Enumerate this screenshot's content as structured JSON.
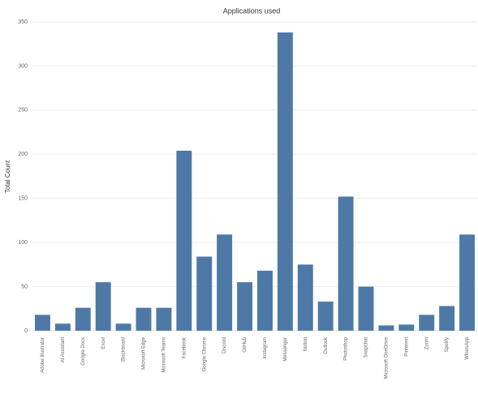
{
  "chart_data": {
    "type": "bar",
    "title": "Applications used",
    "y_label": "Total Count",
    "categories": [
      "Adobe Illustrator",
      "AI Assistant",
      "Google Docs",
      "Excel",
      "Blackboard",
      "Microsoft Edge",
      "Microsoft Teams",
      "Facebook",
      "Google Chrome",
      "Discord",
      "GitHub",
      "Instagram",
      "Messenger",
      "Notion",
      "Outlook",
      "Photoshop",
      "Snapchat",
      "Microsoft OneDrive",
      "Pinterest",
      "Zoom",
      "Spotify",
      "WhatsApp"
    ],
    "values": [
      18,
      8,
      26,
      55,
      8,
      26,
      26,
      204,
      84,
      109,
      55,
      68,
      338,
      75,
      33,
      152,
      50,
      6,
      7,
      18,
      28,
      109
    ],
    "color": "#4e79a7",
    "ylim": [
      0,
      350
    ],
    "yticks": [
      0,
      50,
      100,
      150,
      200,
      250,
      300,
      350
    ],
    "grid": true
  }
}
